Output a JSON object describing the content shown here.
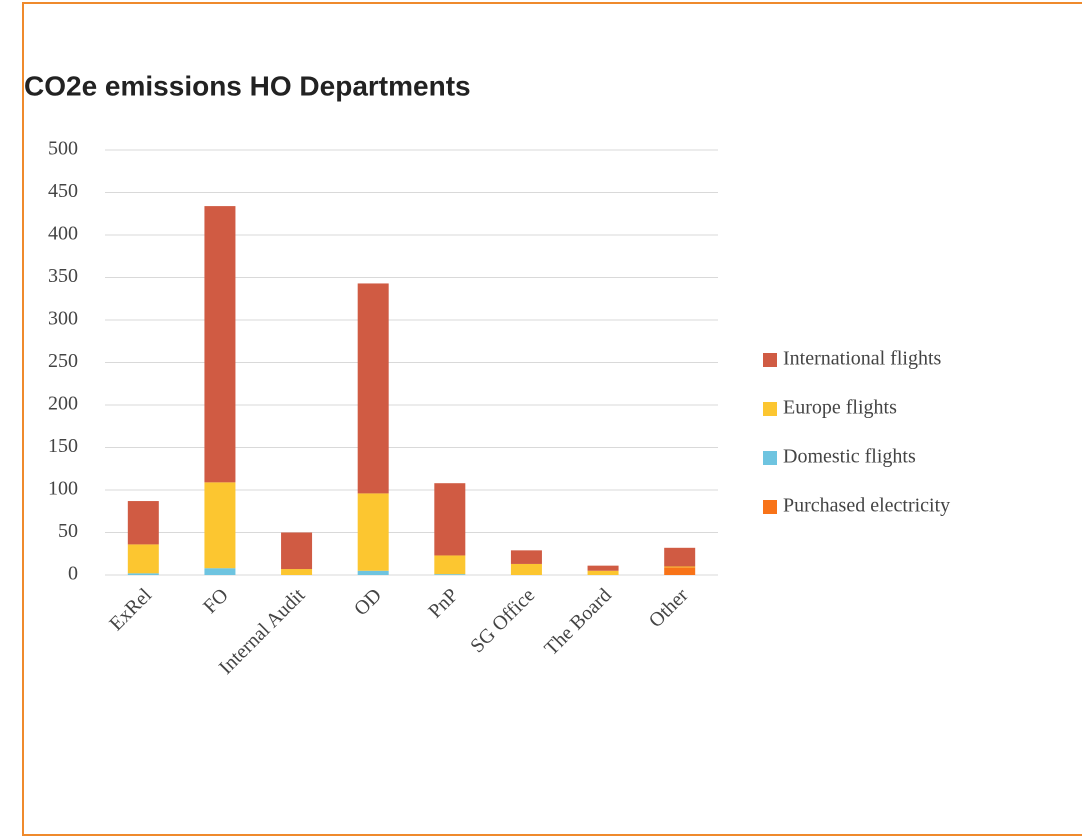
{
  "chart_data": {
    "type": "stacked_bar",
    "title": "CO2e emissions HO Departments",
    "categories": [
      "ExRel",
      "FO",
      "Internal Audit",
      "OD",
      "PnP",
      "SG Office",
      "The Board",
      "Other"
    ],
    "series": [
      {
        "name": "International flights",
        "color": "#d05b43",
        "values": [
          51,
          325,
          43,
          247,
          85,
          16,
          6,
          22
        ]
      },
      {
        "name": "Europe flights",
        "color": "#fcc630",
        "values": [
          34,
          101,
          7,
          91,
          22,
          13,
          5,
          1
        ]
      },
      {
        "name": "Domestic flights",
        "color": "#6ec4e0",
        "values": [
          2,
          8,
          0,
          5,
          1,
          0,
          0,
          0
        ]
      },
      {
        "name": "Purchased electricity",
        "color": "#f87318",
        "values": [
          0,
          0,
          0,
          0,
          0,
          0,
          0,
          9
        ]
      }
    ],
    "ylim": [
      0,
      500
    ],
    "yticks": [
      0,
      50,
      100,
      150,
      200,
      250,
      300,
      350,
      400,
      450,
      500
    ],
    "grid": true,
    "legend": "right"
  }
}
